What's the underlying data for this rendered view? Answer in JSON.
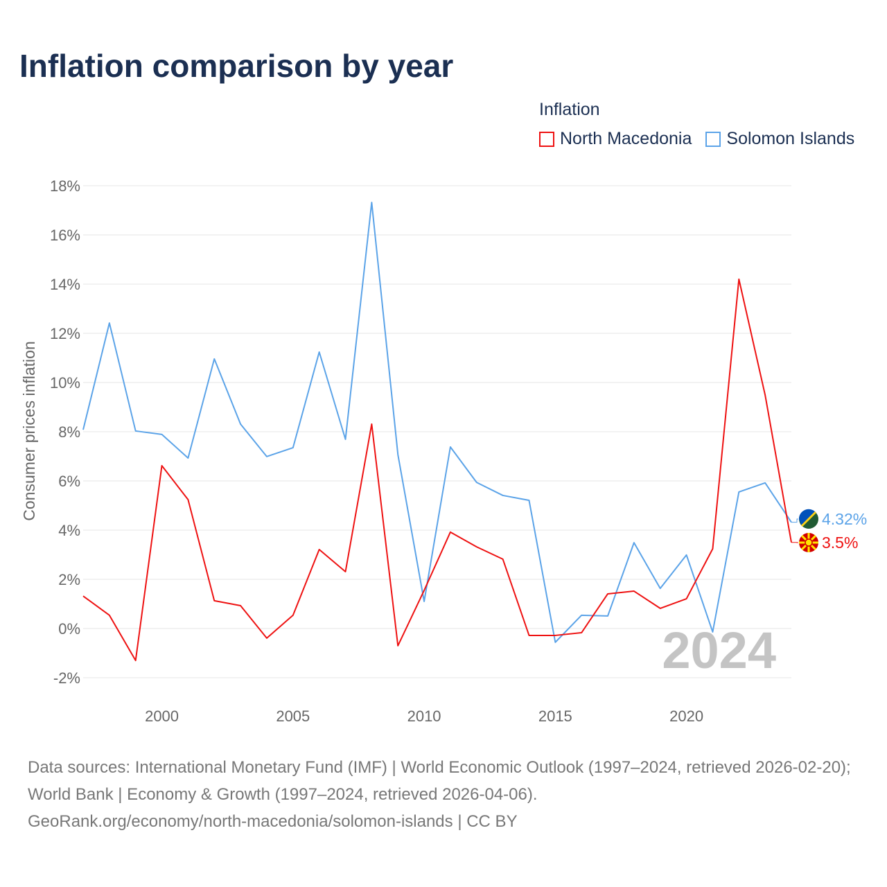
{
  "title": "Inflation comparison by year",
  "legend": {
    "title": "Inflation",
    "items": [
      {
        "name": "North Macedonia",
        "color": "#ee1111"
      },
      {
        "name": "Solomon Islands",
        "color": "#5ba3e8"
      }
    ]
  },
  "source_lines": [
    "Data sources: International Monetary Fund (IMF) | World Economic Outlook (1997–2024, retrieved 2026-02-20); World Bank | Economy & Growth (1997–2024, retrieved 2026-04-06).",
    "GeoRank.org/economy/north-macedonia/solomon-islands | CC BY"
  ],
  "chart_data": {
    "type": "line",
    "title": "Inflation comparison by year",
    "xlabel": "",
    "ylabel": "Consumer prices inflation",
    "year_watermark": "2024",
    "xlim": [
      1997,
      2024
    ],
    "ylim": [
      -2.5,
      18.5
    ],
    "yticks": [
      -2,
      0,
      2,
      4,
      6,
      8,
      10,
      12,
      14,
      16,
      18
    ],
    "ytick_labels": [
      "-2%",
      "0%",
      "2%",
      "4%",
      "6%",
      "8%",
      "10%",
      "12%",
      "14%",
      "16%",
      "18%"
    ],
    "xticks": [
      2000,
      2005,
      2010,
      2015,
      2020
    ],
    "xtick_labels": [
      "2000",
      "2005",
      "2010",
      "2015",
      "2020"
    ],
    "grid": true,
    "legend_position": "top-right",
    "x": [
      1997,
      1998,
      1999,
      2000,
      2001,
      2002,
      2003,
      2004,
      2005,
      2006,
      2007,
      2008,
      2009,
      2010,
      2011,
      2012,
      2013,
      2014,
      2015,
      2016,
      2017,
      2018,
      2019,
      2020,
      2021,
      2022,
      2023,
      2024
    ],
    "series": [
      {
        "name": "North Macedonia",
        "color": "#ee1111",
        "end_label": "3.5%",
        "values": [
          1.32,
          0.54,
          -1.3,
          6.62,
          5.24,
          1.13,
          0.93,
          -0.39,
          0.54,
          3.21,
          2.31,
          8.31,
          -0.7,
          1.55,
          3.92,
          3.32,
          2.82,
          -0.28,
          -0.28,
          -0.17,
          1.41,
          1.52,
          0.82,
          1.21,
          3.24,
          14.2,
          9.49,
          3.5
        ]
      },
      {
        "name": "Solomon Islands",
        "color": "#5ba3e8",
        "end_label": "4.32%",
        "values": [
          8.08,
          12.42,
          8.03,
          7.89,
          6.93,
          10.96,
          8.31,
          6.99,
          7.35,
          11.24,
          7.69,
          17.32,
          7.07,
          1.1,
          7.38,
          5.94,
          5.41,
          5.21,
          -0.56,
          0.54,
          0.51,
          3.49,
          1.63,
          2.99,
          -0.14,
          5.55,
          5.92,
          4.32
        ]
      }
    ]
  }
}
